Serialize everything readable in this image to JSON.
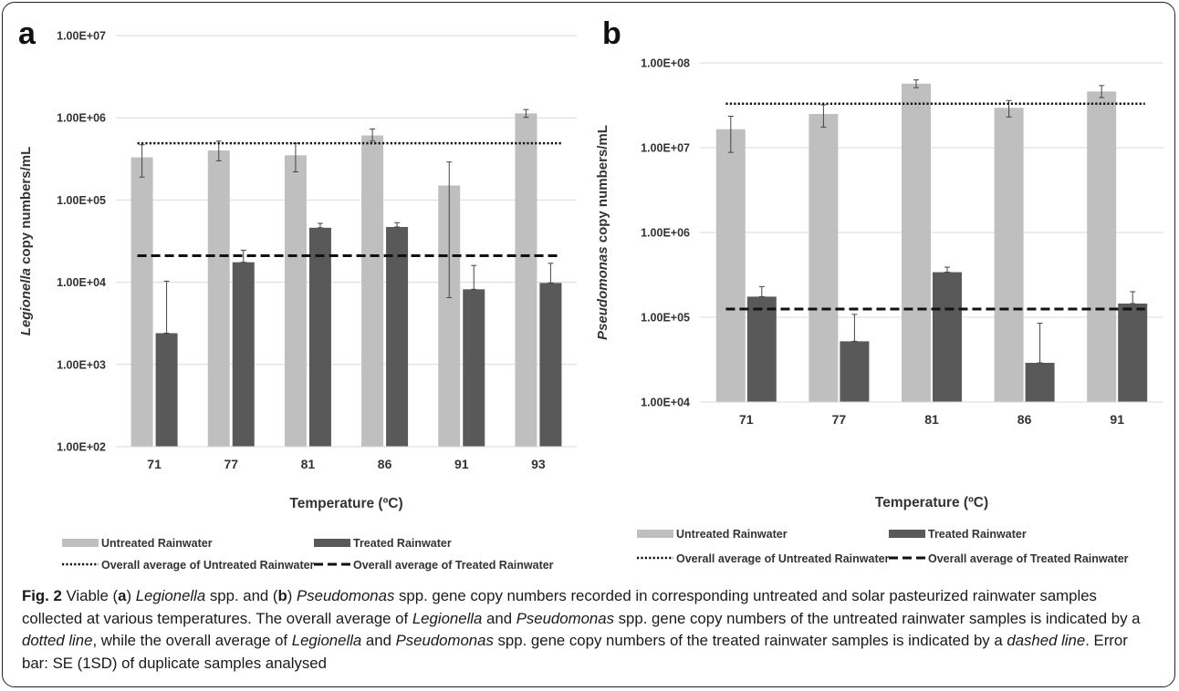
{
  "chart_data": [
    {
      "panel_letter": "a",
      "type": "bar",
      "ylabel_italic": "Legionella",
      "ylabel_rest": " copy numbers/mL",
      "xlabel": "Temperature (ºC)",
      "y_scale": "log",
      "ylim": [
        100,
        10000000
      ],
      "y_ticks": [
        100,
        1000,
        10000,
        100000,
        1000000,
        10000000
      ],
      "y_tick_labels": [
        "1.00E+02",
        "1.00E+03",
        "1.00E+04",
        "1.00E+05",
        "1.00E+06",
        "1.00E+07"
      ],
      "gridlines": true,
      "categories": [
        "71",
        "77",
        "81",
        "86",
        "91",
        "93"
      ],
      "series": [
        {
          "name": "Untreated Rainwater",
          "color": "#bfbfbf",
          "values": [
            330000,
            400000,
            350000,
            610000,
            150000,
            1130000
          ],
          "err_low": [
            190000,
            300000,
            220000,
            520000,
            6500,
            1010000
          ],
          "err_high": [
            470000,
            520000,
            490000,
            730000,
            290000,
            1260000
          ]
        },
        {
          "name": "Treated Rainwater",
          "color": "#595959",
          "values": [
            2400,
            17500,
            46000,
            47000,
            8200,
            9800
          ],
          "err_low": [
            2400,
            17500,
            46000,
            47000,
            8200,
            9800
          ],
          "err_high": [
            10300,
            24500,
            52000,
            53000,
            16000,
            17000
          ]
        }
      ],
      "averages": [
        {
          "name": "Overall average of Untreated Rainwater",
          "value": 490000,
          "style": "dotted"
        },
        {
          "name": "Overall average of Treated Rainwater",
          "value": 21000,
          "style": "dashed"
        }
      ],
      "legend_position": "bottom"
    },
    {
      "panel_letter": "b",
      "type": "bar",
      "ylabel_italic": "Pseudomonas",
      "ylabel_rest": " copy numbers/mL",
      "xlabel": "Temperature (ºC)",
      "y_scale": "log",
      "ylim": [
        10000,
        100000000
      ],
      "y_ticks": [
        10000,
        100000,
        1000000,
        10000000,
        100000000
      ],
      "y_tick_labels": [
        "1.00E+04",
        "1.00E+05",
        "1.00E+06",
        "1.00E+07",
        "1.00E+08"
      ],
      "gridlines": true,
      "categories": [
        "71",
        "77",
        "81",
        "86",
        "91"
      ],
      "series": [
        {
          "name": "Untreated Rainwater",
          "color": "#bfbfbf",
          "values": [
            16500000,
            25000000,
            57000000,
            29500000,
            46000000
          ],
          "err_low": [
            8800000,
            17500000,
            51000000,
            23000000,
            39000000
          ],
          "err_high": [
            23500000,
            32000000,
            63000000,
            36000000,
            54000000
          ]
        },
        {
          "name": "Treated Rainwater",
          "color": "#595959",
          "values": [
            175000,
            52000,
            340000,
            29000,
            145000
          ],
          "err_low": [
            175000,
            52000,
            340000,
            29000,
            145000
          ],
          "err_high": [
            230000,
            108000,
            390000,
            85000,
            200000
          ]
        }
      ],
      "averages": [
        {
          "name": "Overall average of Untreated Rainwater",
          "value": 33000000,
          "style": "dotted"
        },
        {
          "name": "Overall average of Treated Rainwater",
          "value": 125000,
          "style": "dashed"
        }
      ],
      "legend_position": "bottom"
    }
  ],
  "caption": {
    "fig_label": "Fig. 2",
    "segments": [
      {
        "text": " Viable ("
      },
      {
        "text": "a",
        "bold": true
      },
      {
        "text": ") "
      },
      {
        "text": "Legionella",
        "italic": true
      },
      {
        "text": " spp. and ("
      },
      {
        "text": "b",
        "bold": true
      },
      {
        "text": ") "
      },
      {
        "text": "Pseudomonas",
        "italic": true
      },
      {
        "text": " spp. gene copy numbers recorded in corresponding untreated and solar pasteurized rainwater samples collected at various temperatures. The overall average of "
      },
      {
        "text": "Legionella",
        "italic": true
      },
      {
        "text": " and "
      },
      {
        "text": "Pseudomonas",
        "italic": true
      },
      {
        "text": " spp. gene copy numbers of the untreated rainwater samples is indicated by a "
      },
      {
        "text": "dotted line",
        "italic": true
      },
      {
        "text": ", while the overall average of "
      },
      {
        "text": "Legionella",
        "italic": true
      },
      {
        "text": " and "
      },
      {
        "text": "Pseudomonas",
        "italic": true
      },
      {
        "text": " spp. gene copy numbers of the treated rainwater samples is indicated by a "
      },
      {
        "text": "dashed line",
        "italic": true
      },
      {
        "text": ". Error bar: SE (1SD) of duplicate samples analysed"
      }
    ]
  }
}
